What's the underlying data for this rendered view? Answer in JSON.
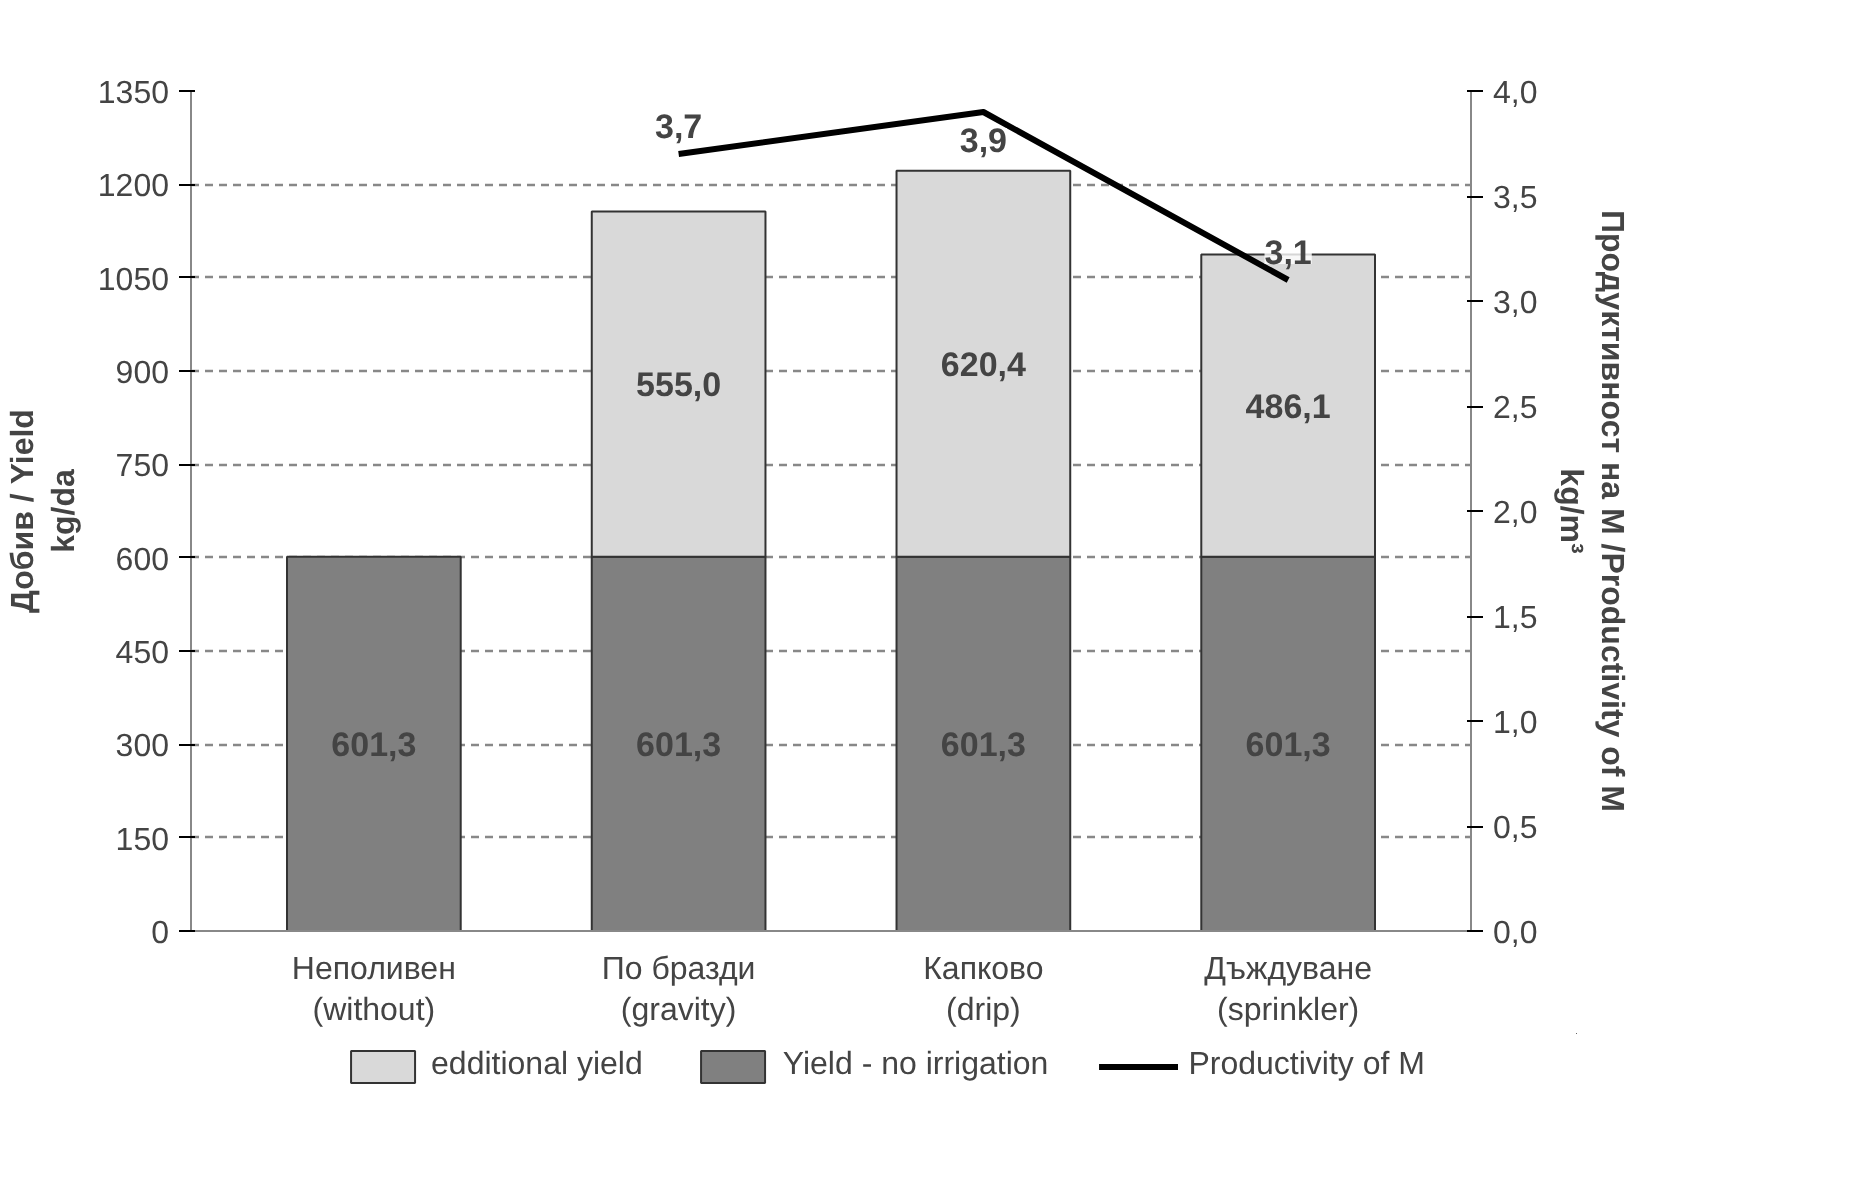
{
  "chart_data": {
    "type": "bar",
    "stacked": true,
    "categories": [
      "Неполивен\n(without)",
      "По бразди\n(gravity)",
      "Капково\n(drip)",
      "Дъждуване\n(sprinkler)"
    ],
    "ylabel": "Добив / Yield\nkg/da",
    "y2label": "Продуктивност на М /Productivity of M\nkg/m³",
    "ylim": [
      0,
      1350
    ],
    "yticks": [
      0,
      150,
      300,
      450,
      600,
      750,
      900,
      1050,
      1200,
      1350
    ],
    "y2lim": [
      0,
      4
    ],
    "y2ticks": [
      {
        "value": 0,
        "label": "0,0"
      },
      {
        "value": 0.5,
        "label": "0,5"
      },
      {
        "value": 1,
        "label": "1,0"
      },
      {
        "value": 1.5,
        "label": "1,5"
      },
      {
        "value": 2,
        "label": "2,0"
      },
      {
        "value": 2.5,
        "label": "2,5"
      },
      {
        "value": 3,
        "label": "3,0"
      },
      {
        "value": 3.5,
        "label": "3,5"
      },
      {
        "value": 4,
        "label": "4,0"
      }
    ],
    "grid": "y",
    "legend": "bottom",
    "series": [
      {
        "name": "Yield - no irrigation",
        "color": "#808080",
        "values": [
          601.3,
          601.3,
          601.3,
          601.3
        ],
        "value_labels": [
          "601,3",
          "601,3",
          "601,3",
          "601,3"
        ]
      },
      {
        "name": "edditional yield",
        "color": "#d9d9d9",
        "values": [
          null,
          555.0,
          620.4,
          486.1
        ],
        "value_labels": [
          null,
          "555,0",
          "620,4",
          "486,1"
        ]
      },
      {
        "name": "Productivity of M",
        "type": "line",
        "axis": "y2",
        "color": "#000000",
        "values": [
          null,
          3.7,
          3.9,
          3.1
        ],
        "value_labels": [
          null,
          "3,7",
          "3,9",
          "3,1"
        ]
      }
    ]
  }
}
